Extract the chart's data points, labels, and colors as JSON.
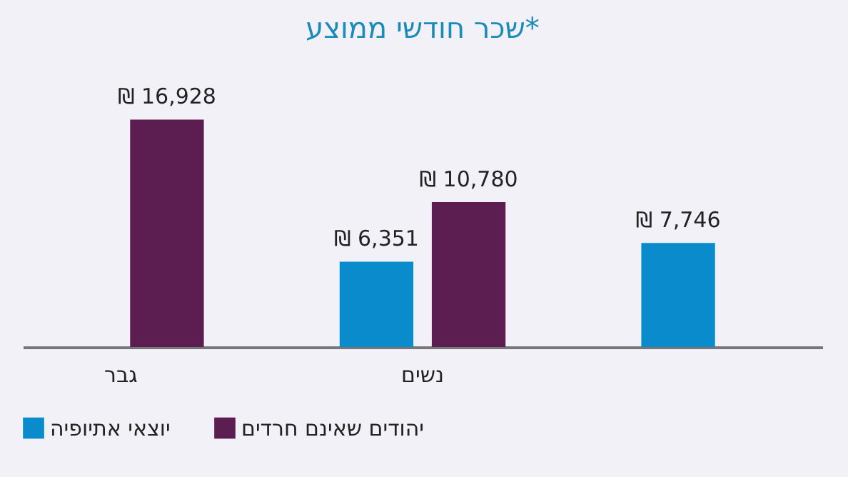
{
  "chart_data": {
    "type": "bar",
    "title": "שכר חודשי ממוצע*",
    "categories": [
      "גבר",
      "נשים",
      null
    ],
    "series": [
      {
        "name": "יוצאי אתיופיה",
        "color": "#0a8ccc",
        "values": [
          null,
          6351,
          7746
        ],
        "value_labels": [
          null,
          "₪ 6,351",
          "₪ 7,746"
        ]
      },
      {
        "name": "יהודים שאינם חרדים",
        "color": "#5c1d50",
        "values": [
          16928,
          10780,
          null
        ],
        "value_labels": [
          "₪ 16,928",
          "₪ 10,780",
          null
        ]
      }
    ],
    "legend": "bottom"
  }
}
